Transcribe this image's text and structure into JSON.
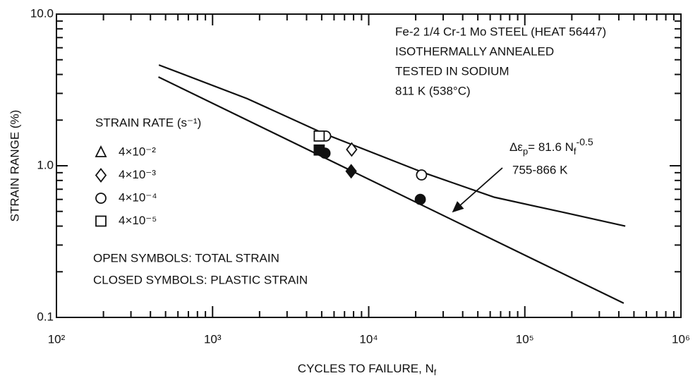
{
  "chart_data": {
    "type": "scatter",
    "log_x": true,
    "log_y": true,
    "minor_ticks": true,
    "ylabel": "STRAIN RANGE (%)",
    "xlabel": "CYCLES TO FAILURE, N",
    "xlabel_subscript": "f",
    "xlim": [
      100,
      1000000
    ],
    "xticks": [
      {
        "value": 100,
        "label": "10²"
      },
      {
        "value": 1000,
        "label": "10³"
      },
      {
        "value": 10000,
        "label": "10⁴"
      },
      {
        "value": 100000,
        "label": "10⁵"
      },
      {
        "value": 1000000,
        "label": "10⁶"
      }
    ],
    "ylim": [
      0.1,
      10
    ],
    "yticks": [
      0.1,
      {
        "value": 1,
        "label": "1.0"
      },
      {
        "value": 10,
        "label": "10.0"
      }
    ],
    "color": "#111111",
    "annotation": [
      "Fe-2 1/4 Cr-1 Mo STEEL (HEAT 56447)",
      "ISOTHERMALLY  ANNEALED",
      "TESTED IN SODIUM",
      "811 K (538°C)"
    ],
    "legend_title": "STRAIN RATE (s⁻¹)",
    "series": [
      {
        "name": "4×10⁻²",
        "marker": "triangle",
        "x_total": [],
        "total": [],
        "x_plastic": [],
        "plastic": []
      },
      {
        "name": "4×10⁻³",
        "marker": "diamond",
        "x_total": [
          7780
        ],
        "total": [
          1.28
        ],
        "x_plastic": [
          7720
        ],
        "plastic": [
          0.92
        ]
      },
      {
        "name": "4×10⁻⁴",
        "marker": "circle",
        "x_total": [
          5300,
          21800
        ],
        "total": [
          1.57,
          0.87
        ],
        "x_plastic": [
          5250,
          21400
        ],
        "plastic": [
          1.21,
          0.6
        ]
      },
      {
        "name": "4×10⁻⁵",
        "marker": "square",
        "x_total": [
          4820
        ],
        "total": [
          1.57
        ],
        "x_plastic": [
          4820
        ],
        "plastic": [
          1.27
        ]
      }
    ],
    "notes": [
      "OPEN SYMBOLS: TOTAL STRAIN",
      "CLOSED SYMBOLS: PLASTIC STRAIN"
    ],
    "curves": [
      {
        "x": [
          453,
          1667,
          5240,
          22500,
          63800,
          181000,
          440000
        ],
        "values": [
          4.62,
          2.77,
          1.62,
          0.9,
          0.62,
          0.49,
          0.4
        ]
      },
      {
        "x": [
          450,
          430000
        ],
        "values": [
          3.85,
          0.124
        ]
      }
    ],
    "equation": [
      "Δε",
      "p",
      "= 81.6 N",
      "f",
      "-0.5"
    ],
    "equation_range": "755-866 K"
  }
}
